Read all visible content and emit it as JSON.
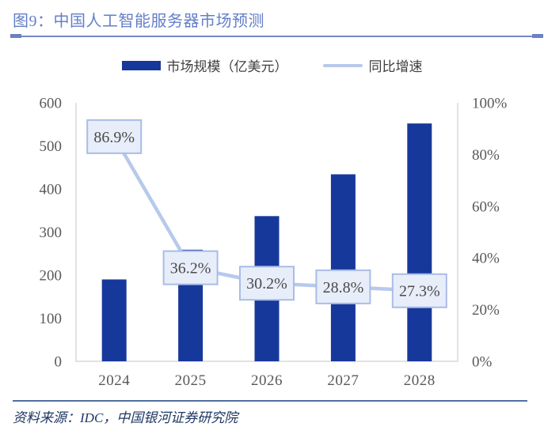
{
  "header": {
    "title": "图9：中国人工智能服务器市场预测"
  },
  "legend": {
    "bar_label": "市场规模（亿美元）",
    "line_label": "同比增速"
  },
  "source": {
    "text": "资料来源：IDC，中国银河证券研究院"
  },
  "colors": {
    "title": "#637fc8",
    "top_rule": "#7589c6",
    "bar": "#17389b",
    "line": "#b7c9ec",
    "label_box_fill": "#e8eef9",
    "label_box_border": "#a9bce8",
    "label_text": "#4a4a4a",
    "axis_text": "#595959",
    "plot_border": "#d8d8d8",
    "bottom_rule": "#51719f",
    "source_text": "#1f3864"
  },
  "chart_data": {
    "type": "bar+line combo",
    "title": "中国人工智能服务器市场预测",
    "categories": [
      "2024",
      "2025",
      "2026",
      "2027",
      "2028"
    ],
    "series": [
      {
        "name": "市场规模（亿美元）",
        "type": "bar",
        "axis": "left",
        "values": [
          190,
          259,
          337,
          434,
          552
        ]
      },
      {
        "name": "同比增速",
        "type": "line",
        "axis": "right",
        "values": [
          86.9,
          36.2,
          30.2,
          28.8,
          27.3
        ],
        "point_labels": [
          "86.9%",
          "36.2%",
          "30.2%",
          "28.8%",
          "27.3%"
        ]
      }
    ],
    "left_axis": {
      "min": 0,
      "max": 600,
      "tick_labels": [
        "0",
        "100",
        "200",
        "300",
        "400",
        "500",
        "600"
      ]
    },
    "right_axis": {
      "min": 0,
      "max": 100,
      "tick_labels": [
        "0%",
        "20%",
        "40%",
        "60%",
        "80%",
        "100%"
      ]
    },
    "grid": false,
    "legend_position": "top-center"
  }
}
